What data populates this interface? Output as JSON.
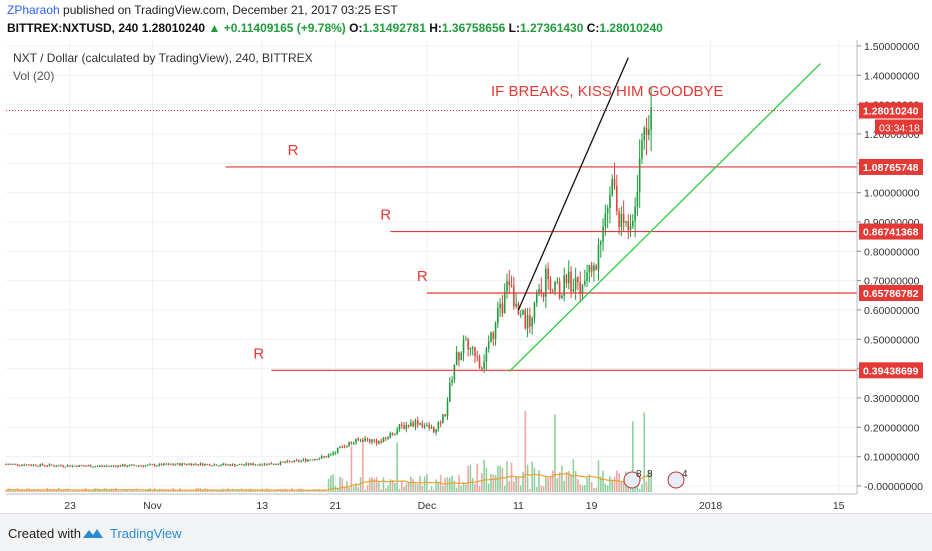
{
  "header": {
    "author": "ZPharaoh",
    "published_text": " published on TradingView.com, December 21, 2017 03:25 EST",
    "symbol": "BITTREX:NXTUSD, 240",
    "last": "1.28010240",
    "change": "+0.11409165 (+9.78%)",
    "open_label": "O:",
    "open": "1.31492781",
    "high_label": "H:",
    "high": "1.36758656",
    "low_label": "L:",
    "low": "1.27361430",
    "close_label": "C:",
    "close": "1.28010240"
  },
  "footer": {
    "created_with": "Created with",
    "brand": "TradingView"
  },
  "colors": {
    "up": "#1f9d3c",
    "down": "#e0433c",
    "vol_up": "#8fd19e",
    "vol_down": "#f2a6a3",
    "resistance": "#e53935",
    "channel": "#2ecc40",
    "trend_black": "#111111",
    "vol_ma": "#f0a030"
  },
  "chart_data": {
    "type": "candlestick",
    "title": "NXT / Dollar (calculated by TradingView), 240, BITTREX",
    "study_label": "Vol (20)",
    "y_ticks": [
      "1.50000000",
      "1.40000000",
      "1.30000000",
      "1.20000000",
      "1.10000000",
      "1.00000000",
      "0.90000000",
      "0.80000000",
      "0.70000000",
      "0.60000000",
      "0.50000000",
      "0.40000000",
      "0.30000000",
      "0.20000000",
      "0.10000000",
      "-0.00000000"
    ],
    "y_tick_values": [
      1.5,
      1.4,
      1.3,
      1.2,
      1.1,
      1.0,
      0.9,
      0.8,
      0.7,
      0.6,
      0.5,
      0.4,
      0.3,
      0.2,
      0.1,
      0.0
    ],
    "ylim": [
      -0.02,
      1.52
    ],
    "x_ticks": [
      "23",
      "Nov",
      "13",
      "21",
      "Dec",
      "11",
      "19",
      "2018",
      "15"
    ],
    "x_tick_days": [
      -8,
      1,
      13,
      21,
      31,
      41,
      49,
      62,
      76
    ],
    "xlim": [
      -15,
      78
    ],
    "price_labels": {
      "last": "1.28010240",
      "countdown": "03:34:18",
      "levels": [
        "1.08765748",
        "0.86741368",
        "0.65786782",
        "0.39438699"
      ]
    },
    "resistance_levels": [
      {
        "label": "R",
        "value": 1.0877,
        "start_day": 9
      },
      {
        "label": "R",
        "value": 0.8674,
        "start_day": 27
      },
      {
        "label": "R",
        "value": 0.6579,
        "start_day": 31
      },
      {
        "label": "R",
        "value": 0.3944,
        "start_day": 14
      }
    ],
    "annotation": "IF BREAKS, KISS HIM GOODBYE",
    "trendlines": [
      {
        "name": "black",
        "from": [
          41,
          0.6
        ],
        "to": [
          53,
          1.46
        ]
      },
      {
        "name": "green",
        "from": [
          40,
          0.39
        ],
        "to": [
          74,
          1.44
        ]
      }
    ],
    "price_path": [
      [
        -15,
        0.075
      ],
      [
        -10,
        0.07
      ],
      [
        -5,
        0.068
      ],
      [
        0,
        0.07
      ],
      [
        5,
        0.075
      ],
      [
        10,
        0.072
      ],
      [
        14,
        0.076
      ],
      [
        17,
        0.085
      ],
      [
        20,
        0.1
      ],
      [
        22,
        0.14
      ],
      [
        24,
        0.16
      ],
      [
        26,
        0.15
      ],
      [
        28,
        0.2
      ],
      [
        30,
        0.22
      ],
      [
        31,
        0.2
      ],
      [
        32,
        0.19
      ],
      [
        33,
        0.25
      ],
      [
        34,
        0.42
      ],
      [
        35,
        0.48
      ],
      [
        36,
        0.45
      ],
      [
        37,
        0.42
      ],
      [
        38,
        0.5
      ],
      [
        39,
        0.6
      ],
      [
        40,
        0.68
      ],
      [
        41,
        0.62
      ],
      [
        42,
        0.55
      ],
      [
        43,
        0.64
      ],
      [
        44,
        0.7
      ],
      [
        45,
        0.67
      ],
      [
        46,
        0.68
      ],
      [
        47,
        0.7
      ],
      [
        48,
        0.68
      ],
      [
        49,
        0.72
      ],
      [
        50,
        0.8
      ],
      [
        51,
        1.05
      ],
      [
        52,
        0.9
      ],
      [
        53,
        0.85
      ],
      [
        54,
        1.05
      ],
      [
        55,
        1.25
      ],
      [
        55.6,
        1.28
      ]
    ],
    "volume_labels": [
      "8",
      "8",
      "4"
    ]
  }
}
